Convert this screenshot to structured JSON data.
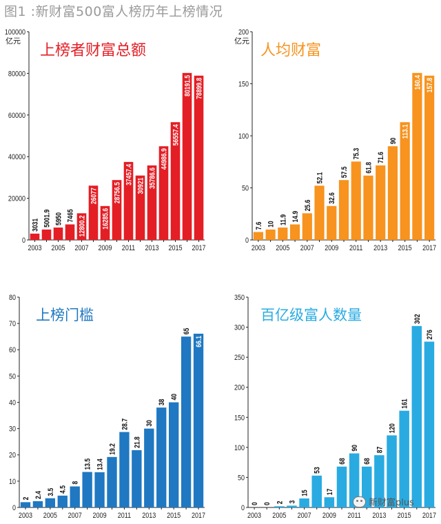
{
  "figure_title": "图1 :新财富500富人榜历年上榜情况",
  "watermark": {
    "text": "新财富plus",
    "icon": "wechat-icon"
  },
  "chart_data": [
    {
      "type": "bar",
      "title": "上榜者财富总额",
      "ylabel": "亿元",
      "ylim": [
        0,
        100000
      ],
      "yticks": [
        "0",
        "20000",
        "40000",
        "60000",
        "80000",
        "100000"
      ],
      "color": "#e41e25",
      "title_color": "#e41e25",
      "categories": [
        "2003",
        "2004",
        "2005",
        "2006",
        "2007",
        "2008",
        "2009",
        "2010",
        "2011",
        "2012",
        "2013",
        "2014",
        "2015",
        "2016",
        "2017"
      ],
      "x_tick_labels": [
        "2003",
        "2005",
        "2007",
        "2009",
        "2011",
        "2013",
        "2015",
        "2017"
      ],
      "values": [
        3031,
        5001.9,
        5950,
        7465,
        12800.2,
        26077,
        16285.6,
        28756.5,
        37457.4,
        30921,
        35786.6,
        44986.9,
        56557.4,
        80191.5,
        78899.8
      ],
      "data_labels": [
        "3031",
        "5001.9",
        "5950",
        "7465",
        "12800.2",
        "26077",
        "16285.6",
        "28756.5",
        "37457.4",
        "30921",
        "35786.6",
        "44986.9",
        "56557.4",
        "80191.5",
        "78899.8"
      ],
      "label_inside": [
        false,
        false,
        false,
        false,
        true,
        true,
        true,
        true,
        true,
        true,
        true,
        true,
        true,
        true,
        true
      ]
    },
    {
      "type": "bar",
      "title": "人均财富",
      "ylabel": "亿元",
      "ylim": [
        0,
        200
      ],
      "yticks": [
        "0",
        "50",
        "100",
        "150",
        "200"
      ],
      "color": "#f7931e",
      "title_color": "#f7931e",
      "categories": [
        "2003",
        "2004",
        "2005",
        "2006",
        "2007",
        "2008",
        "2009",
        "2010",
        "2011",
        "2012",
        "2013",
        "2014",
        "2015",
        "2016",
        "2017"
      ],
      "x_tick_labels": [
        "2003",
        "2005",
        "2007",
        "2009",
        "2011",
        "2013",
        "2015",
        "2017"
      ],
      "values": [
        7.6,
        10,
        11.9,
        14.9,
        25.6,
        52.1,
        32.6,
        57.5,
        75.3,
        61.8,
        71.6,
        90,
        113.1,
        160.4,
        157.8
      ],
      "data_labels": [
        "7.6",
        "10",
        "11.9",
        "14.9",
        "25.6",
        "52.1",
        "32.6",
        "57.5",
        "75.3",
        "61.8",
        "71.6",
        "90",
        "113.1",
        "160.4",
        "157.8"
      ],
      "label_inside": [
        false,
        false,
        false,
        false,
        false,
        false,
        false,
        false,
        false,
        false,
        false,
        false,
        true,
        true,
        true
      ]
    },
    {
      "type": "bar",
      "title": "上榜门槛",
      "ylabel": "",
      "ylim": [
        0,
        80
      ],
      "yticks": [
        "0",
        "10",
        "20",
        "30",
        "40",
        "50",
        "60",
        "70",
        "80"
      ],
      "color": "#1f78c1",
      "title_color": "#1f78c1",
      "categories": [
        "2003",
        "2004",
        "2005",
        "2006",
        "2007",
        "2008",
        "2009",
        "2010",
        "2011",
        "2012",
        "2013",
        "2014",
        "2015",
        "2016",
        "2017"
      ],
      "x_tick_labels": [
        "2003",
        "2005",
        "2007",
        "2009",
        "2011",
        "2013",
        "2015",
        "2017"
      ],
      "values": [
        2,
        2.4,
        3.5,
        4.5,
        8,
        13.5,
        13.4,
        19.2,
        28.7,
        21.8,
        30,
        38,
        40,
        65,
        66.1
      ],
      "data_labels": [
        "2",
        "2.4",
        "3.5",
        "4.5",
        "8",
        "13.5",
        "13.4",
        "19.2",
        "28.7",
        "21.8",
        "30",
        "38",
        "40",
        "65",
        "66.1"
      ],
      "label_inside": [
        false,
        false,
        false,
        false,
        false,
        false,
        false,
        false,
        false,
        false,
        false,
        false,
        false,
        false,
        true
      ]
    },
    {
      "type": "bar",
      "title": "百亿级富人数量",
      "ylabel": "",
      "ylim": [
        0,
        350
      ],
      "yticks": [
        "0",
        "50",
        "100",
        "150",
        "200",
        "250",
        "300",
        "350"
      ],
      "color": "#29abe2",
      "title_color": "#29abe2",
      "categories": [
        "2003",
        "2004",
        "2005",
        "2006",
        "2007",
        "2008",
        "2009",
        "2010",
        "2011",
        "2012",
        "2013",
        "2014",
        "2015",
        "2016",
        "2017"
      ],
      "x_tick_labels": [
        "2003",
        "2005",
        "2007",
        "2009",
        "2011",
        "2013",
        "2015",
        "2017"
      ],
      "values": [
        0,
        0,
        2,
        3,
        15,
        53,
        17,
        68,
        90,
        68,
        87,
        120,
        161,
        302,
        276
      ],
      "data_labels": [
        "0",
        "0",
        "2",
        "3",
        "15",
        "53",
        "17",
        "68",
        "90",
        "68",
        "87",
        "120",
        "161",
        "302",
        "276"
      ],
      "label_inside": [
        false,
        false,
        false,
        false,
        false,
        false,
        false,
        false,
        false,
        false,
        false,
        false,
        false,
        false,
        false
      ]
    }
  ]
}
